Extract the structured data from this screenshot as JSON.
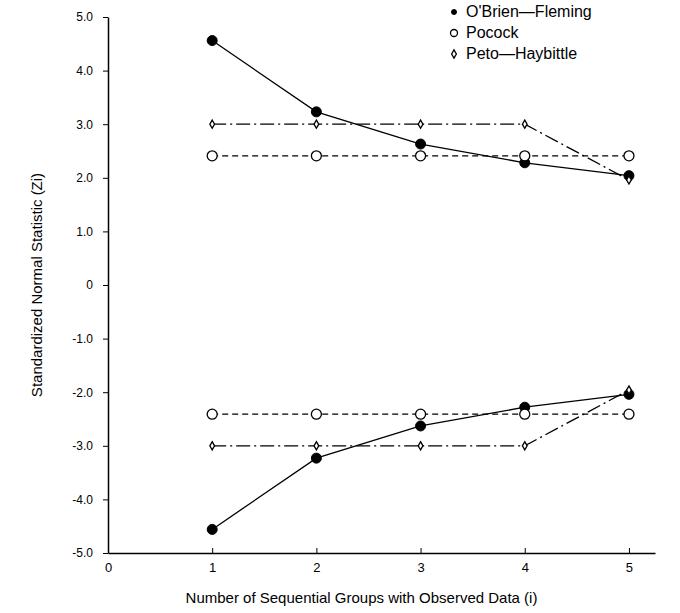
{
  "chart_data": {
    "type": "line",
    "x": [
      1,
      2,
      3,
      4,
      5
    ],
    "xlim": [
      0,
      5.25
    ],
    "xticks": [
      0,
      1,
      2,
      3,
      4,
      5
    ],
    "ylim": [
      -5,
      5
    ],
    "yticks": [
      {
        "value": 5,
        "label": "5.0"
      },
      {
        "value": 4,
        "label": "4.0"
      },
      {
        "value": 3,
        "label": "3.0"
      },
      {
        "value": 2,
        "label": "2.0"
      },
      {
        "value": 1,
        "label": "1.0"
      },
      0,
      {
        "value": -1,
        "label": "-1.0"
      },
      {
        "value": -2,
        "label": "-2.0"
      },
      {
        "value": -3,
        "label": "-3.0"
      },
      {
        "value": -4,
        "label": "-4.0"
      },
      {
        "value": -5,
        "label": "-5.0"
      }
    ],
    "x_label": "Number of Sequential Groups with Observed Data (i)",
    "y_label": "Standardized Normal Statistic (Zi)",
    "grid": false,
    "legend": "top-right",
    "series": [
      {
        "name": "O'Brien—Fleming",
        "color": "#000000",
        "marker": "filled-circle",
        "line_style": "solid",
        "values": [
          4.56,
          3.23,
          2.63,
          2.28,
          2.04
        ],
        "lower": [
          -4.56,
          -3.23,
          -2.63,
          -2.28,
          -2.04
        ]
      },
      {
        "name": "Pocock",
        "color": "#000000",
        "marker": "open-circle",
        "line_style": "dashed",
        "values": [
          2.41,
          2.41,
          2.41,
          2.41,
          2.41
        ],
        "lower": [
          -2.41,
          -2.41,
          -2.41,
          -2.41,
          -2.41
        ]
      },
      {
        "name": "Peto—Haybittle",
        "color": "#000000",
        "marker": "diamond",
        "line_style": "dash-dot",
        "values": [
          3,
          3,
          3,
          3,
          1.96
        ],
        "lower": [
          -3,
          -3,
          -3,
          -3,
          -1.96
        ]
      }
    ]
  }
}
